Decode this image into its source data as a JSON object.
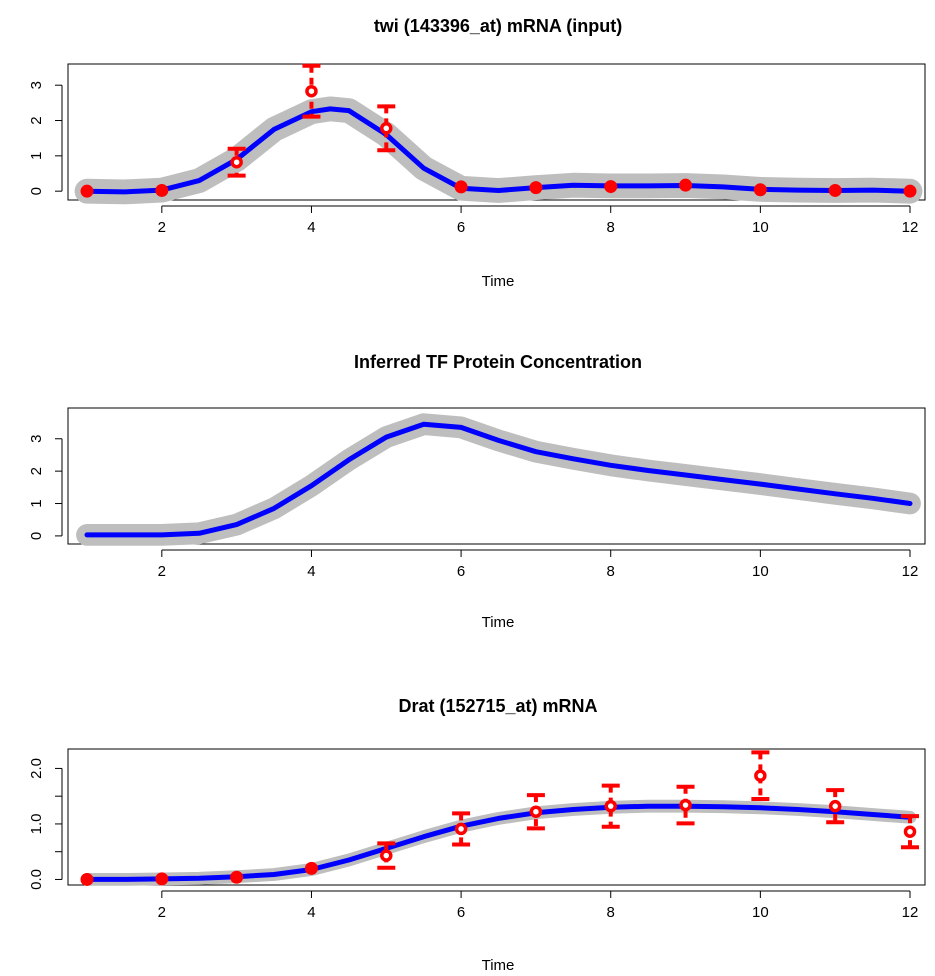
{
  "chart_data": [
    {
      "type": "line",
      "title": "twi (143396_at) mRNA (input)",
      "xlabel": "Time",
      "ylabel": "",
      "xlim": [
        1,
        12
      ],
      "ylim": [
        -0.25,
        3.6
      ],
      "xticks": [
        2,
        4,
        6,
        8,
        10,
        12
      ],
      "yticks": [
        0,
        1,
        2,
        3
      ],
      "ytick_labels": [
        "0",
        "1",
        "2",
        "3"
      ],
      "series": [
        {
          "style": "line",
          "color": "#0000ff",
          "band_color": "#bebebe",
          "band_halfwidth": 0.28,
          "x": [
            1,
            1.5,
            2,
            2.5,
            3,
            3.5,
            4,
            4.25,
            4.5,
            5,
            5.5,
            6,
            6.5,
            7,
            7.5,
            8,
            8.5,
            9,
            9.5,
            10,
            10.5,
            11,
            11.5,
            12
          ],
          "y": [
            0.0,
            -0.02,
            0.03,
            0.3,
            0.9,
            1.75,
            2.25,
            2.33,
            2.28,
            1.6,
            0.65,
            0.08,
            0.02,
            0.1,
            0.17,
            0.15,
            0.15,
            0.16,
            0.12,
            0.05,
            0.03,
            0.02,
            0.03,
            0.0
          ]
        },
        {
          "style": "points",
          "color": "#ff0000",
          "x": [
            1,
            2,
            3,
            4,
            5,
            6,
            7,
            8,
            9,
            10,
            11,
            12
          ],
          "y": [
            0.0,
            0.02,
            0.82,
            2.83,
            1.78,
            0.12,
            0.1,
            0.13,
            0.17,
            0.04,
            0.02,
            0.0
          ],
          "err": [
            0.04,
            0.04,
            0.38,
            0.72,
            0.62,
            0.1,
            0.08,
            0.1,
            0.15,
            0.04,
            0.04,
            0.04
          ]
        }
      ]
    },
    {
      "type": "line",
      "title": "Inferred TF Protein Concentration",
      "xlabel": "Time",
      "ylabel": "",
      "xlim": [
        1,
        12
      ],
      "ylim": [
        -0.25,
        3.95
      ],
      "xticks": [
        2,
        4,
        6,
        8,
        10,
        12
      ],
      "yticks": [
        0,
        1,
        2,
        3
      ],
      "ytick_labels": [
        "0",
        "1",
        "2",
        "3"
      ],
      "series": [
        {
          "style": "line",
          "color": "#0000ff",
          "band_color": "#bebebe",
          "band_halfwidth": 0.26,
          "x": [
            1,
            1.5,
            2,
            2.5,
            3,
            3.5,
            4,
            4.5,
            5,
            5.5,
            6,
            6.5,
            7,
            7.5,
            8,
            8.5,
            9,
            9.5,
            10,
            10.5,
            11,
            11.5,
            12
          ],
          "y": [
            0.03,
            0.03,
            0.03,
            0.08,
            0.35,
            0.85,
            1.55,
            2.35,
            3.05,
            3.45,
            3.35,
            2.95,
            2.6,
            2.38,
            2.18,
            2.02,
            1.88,
            1.74,
            1.6,
            1.45,
            1.3,
            1.16,
            1.0
          ]
        }
      ]
    },
    {
      "type": "line",
      "title": "Drat (152715_at) mRNA",
      "xlabel": "Time",
      "ylabel": "",
      "xlim": [
        1,
        12
      ],
      "ylim": [
        -0.1,
        2.35
      ],
      "xticks": [
        2,
        4,
        6,
        8,
        10,
        12
      ],
      "yticks": [
        0.0,
        0.5,
        1.0,
        1.5,
        2.0
      ],
      "ytick_labels": [
        "0.0",
        "",
        "1.0",
        "",
        "2.0"
      ],
      "series": [
        {
          "style": "line",
          "color": "#0000ff",
          "band_color": "#bebebe",
          "band_halfwidth": 0.07,
          "x": [
            1,
            1.5,
            2,
            2.5,
            3,
            3.5,
            4,
            4.5,
            5,
            5.5,
            6,
            6.5,
            7,
            7.5,
            8,
            8.5,
            9,
            9.5,
            10,
            10.5,
            11,
            11.5,
            12
          ],
          "y": [
            0.0,
            0.0,
            0.01,
            0.02,
            0.05,
            0.09,
            0.18,
            0.35,
            0.56,
            0.77,
            0.96,
            1.1,
            1.2,
            1.26,
            1.3,
            1.32,
            1.32,
            1.31,
            1.29,
            1.26,
            1.22,
            1.17,
            1.12
          ]
        },
        {
          "style": "points",
          "color": "#ff0000",
          "x": [
            1,
            2,
            3,
            4,
            5,
            6,
            7,
            8,
            9,
            10,
            11,
            12
          ],
          "y": [
            0.0,
            0.01,
            0.04,
            0.2,
            0.43,
            0.91,
            1.22,
            1.32,
            1.34,
            1.87,
            1.32,
            0.86
          ],
          "err": [
            0.02,
            0.02,
            0.04,
            0.12,
            0.22,
            0.28,
            0.3,
            0.37,
            0.33,
            0.42,
            0.29,
            0.28
          ]
        }
      ]
    }
  ]
}
